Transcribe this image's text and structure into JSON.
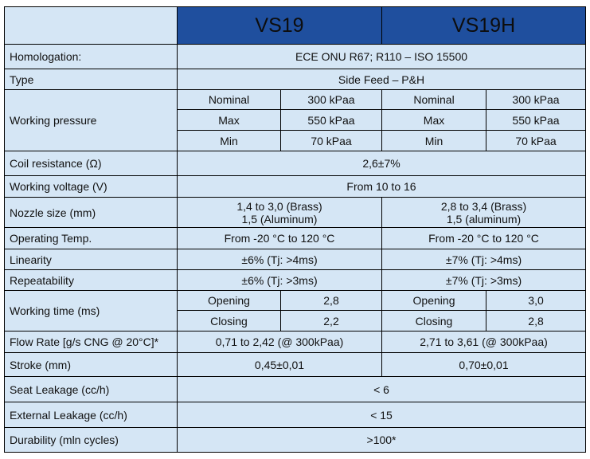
{
  "header": {
    "columns": [
      "VS19",
      "VS19H"
    ]
  },
  "rows": [
    {
      "label": "Homologation:",
      "value": "ECE ONU R67; R110 – ISO 15500"
    },
    {
      "label": "Type",
      "value": "Side Feed – P&H"
    },
    {
      "label": "Working pressure",
      "sub": [
        [
          "Nominal",
          "300 kPaa",
          "Nominal",
          "300 kPaa"
        ],
        [
          "Max",
          "550 kPaa",
          "Max",
          "550 kPaa"
        ],
        [
          "Min",
          "70 kPaa",
          "Min",
          "70 kPaa"
        ]
      ]
    },
    {
      "label": "Coil resistance (Ω)",
      "value": "2,6±7%"
    },
    {
      "label": "Working voltage (V)",
      "value": "From 10 to 16"
    },
    {
      "label": "Nozzle size (mm)",
      "values": [
        [
          "1,4 to 3,0 (Brass)",
          "1,5 (Aluminum)"
        ],
        [
          "2,8 to 3,4 (Brass)",
          "1,5 (aluminum)"
        ]
      ]
    },
    {
      "label": "Operating Temp.",
      "values": [
        "From -20 °C to 120 °C",
        "From -20 °C to 120 °C"
      ]
    },
    {
      "label": "Linearity",
      "values": [
        "±6% (Tj: >4ms)",
        "±7% (Tj: >4ms)"
      ]
    },
    {
      "label": "Repeatability",
      "values": [
        "±6% (Tj: >3ms)",
        "±7% (Tj: >3ms)"
      ]
    },
    {
      "label": "Working time (ms)",
      "sub": [
        [
          "Opening",
          "2,8",
          "Opening",
          "3,0"
        ],
        [
          "Closing",
          "2,2",
          "Closing",
          "2,8"
        ]
      ]
    },
    {
      "label": "Flow Rate [g/s CNG @ 20°C]*",
      "values": [
        "0,71 to 2,42 (@ 300kPaa)",
        "2,71 to 3,61 (@ 300kPaa)"
      ]
    },
    {
      "label": "Stroke (mm)",
      "values": [
        "0,45±0,01",
        "0,70±0,01"
      ]
    },
    {
      "label": "Seat Leakage (cc/h)",
      "value": "< 6"
    },
    {
      "label": "External Leakage (cc/h)",
      "value": "< 15"
    },
    {
      "label": "Durability (mln cycles)",
      "value": ">100*"
    }
  ]
}
